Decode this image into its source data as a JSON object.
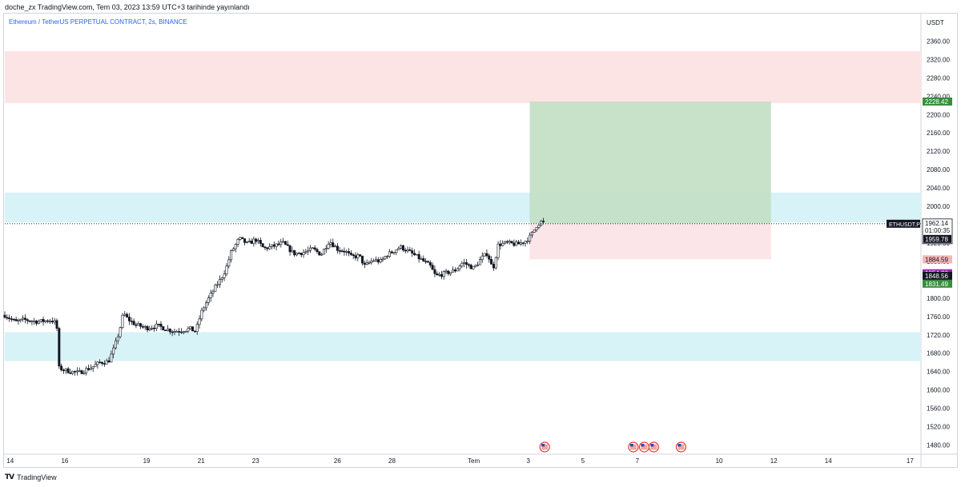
{
  "header": {
    "published_line": "doche_zx TradingView.com, Tem 03, 2023 13:59 UTC+3 tarihinde yayınlandı"
  },
  "footer": {
    "brand": "TradingView",
    "logo_icon": "tradingview-logo-icon"
  },
  "chart_data": {
    "type": "candlestick",
    "title": "Ethereum / TetherUS PERPETUAL CONTRACT, 2s, BINANCE",
    "currency": "USDT",
    "ylim": [
      1460,
      2420
    ],
    "y_ticks": [
      "2360.00",
      "2320.00",
      "2280.00",
      "2240.00",
      "2200.00",
      "2160.00",
      "2120.00",
      "2080.00",
      "2040.00",
      "2000.00",
      "1960.00",
      "1920.00",
      "1880.00",
      "1840.00",
      "1800.00",
      "1760.00",
      "1720.00",
      "1680.00",
      "1640.00",
      "1600.00",
      "1560.00",
      "1520.00",
      "1480.00"
    ],
    "x_ticks": [
      {
        "label": "14",
        "day": 14
      },
      {
        "label": "16",
        "day": 16
      },
      {
        "label": "19",
        "day": 19
      },
      {
        "label": "21",
        "day": 21
      },
      {
        "label": "23",
        "day": 23
      },
      {
        "label": "26",
        "day": 26
      },
      {
        "label": "28",
        "day": 28
      },
      {
        "label": "Tem",
        "day": 31
      },
      {
        "label": "3",
        "day": 33
      },
      {
        "label": "5",
        "day": 35
      },
      {
        "label": "7",
        "day": 37
      },
      {
        "label": "10",
        "day": 40
      },
      {
        "label": "12",
        "day": 42
      },
      {
        "label": "14",
        "day": 44
      },
      {
        "label": "17",
        "day": 47
      }
    ],
    "x_range_days": [
      13.8,
      47.4
    ],
    "zones": [
      {
        "name": "supply-zone",
        "y_from": 2225,
        "y_to": 2338,
        "color": "#fde4e4"
      },
      {
        "name": "upper-demand-zone",
        "y_from": 1965,
        "y_to": 2030,
        "color": "#d8f3f7"
      },
      {
        "name": "lower-demand-zone",
        "y_from": 1663,
        "y_to": 1726,
        "color": "#d8f3f7"
      }
    ],
    "long_position": {
      "x_from_day": 33.05,
      "x_to_day": 41.9,
      "entry": 1962.14,
      "target": 2228.42,
      "stop": 1884.59,
      "target_color": "#c3dfc5",
      "stop_color": "#fbe3e6"
    },
    "current_price": {
      "symbol": "ETHUSDT.P",
      "price": "1962.14",
      "countdown": "01:00:35",
      "value": 1962.14,
      "second_price": "1959.78"
    },
    "price_labels": [
      {
        "text": "2228.42",
        "value": 2228.42,
        "bg": "#388e3c",
        "fg": "#ffffff"
      },
      {
        "text": "1884.59",
        "value": 1884.59,
        "bg": "#f4b6b6",
        "fg": "#131722"
      },
      {
        "text": "1854.30",
        "value": 1854.3,
        "bg": "#9c27b0",
        "fg": "#ffffff"
      },
      {
        "text": "1848.56",
        "value": 1848.56,
        "bg": "#131722",
        "fg": "#ffffff"
      },
      {
        "text": "1831.49",
        "value": 1831.49,
        "bg": "#388e3c",
        "fg": "#ffffff"
      }
    ],
    "event_markers": [
      {
        "day": 33.6,
        "icon": "us-flag-event-icon"
      },
      {
        "day": 36.85,
        "icon": "us-flag-event-icon"
      },
      {
        "day": 37.25,
        "icon": "us-flag-event-icon"
      },
      {
        "day": 37.6,
        "icon": "us-flag-event-icon"
      },
      {
        "day": 38.6,
        "icon": "us-flag-event-icon"
      }
    ],
    "price_path": [
      [
        13.8,
        1763
      ],
      [
        14.2,
        1748
      ],
      [
        14.5,
        1753
      ],
      [
        15.0,
        1749
      ],
      [
        15.5,
        1752
      ],
      [
        15.7,
        1745
      ],
      [
        15.78,
        1648
      ],
      [
        16.0,
        1643
      ],
      [
        16.5,
        1637
      ],
      [
        17.0,
        1650
      ],
      [
        17.3,
        1660
      ],
      [
        17.6,
        1662
      ],
      [
        17.8,
        1690
      ],
      [
        18.0,
        1728
      ],
      [
        18.15,
        1768
      ],
      [
        18.3,
        1755
      ],
      [
        18.6,
        1742
      ],
      [
        19.0,
        1735
      ],
      [
        19.4,
        1740
      ],
      [
        19.7,
        1733
      ],
      [
        20.0,
        1728
      ],
      [
        20.3,
        1730
      ],
      [
        20.6,
        1733
      ],
      [
        20.8,
        1727
      ],
      [
        21.0,
        1768
      ],
      [
        21.2,
        1792
      ],
      [
        21.5,
        1822
      ],
      [
        21.7,
        1840
      ],
      [
        21.9,
        1862
      ],
      [
        22.1,
        1900
      ],
      [
        22.4,
        1930
      ],
      [
        22.7,
        1918
      ],
      [
        23.0,
        1928
      ],
      [
        23.3,
        1908
      ],
      [
        23.7,
        1914
      ],
      [
        24.0,
        1920
      ],
      [
        24.4,
        1897
      ],
      [
        24.8,
        1900
      ],
      [
        25.1,
        1907
      ],
      [
        25.4,
        1895
      ],
      [
        25.7,
        1925
      ],
      [
        26.0,
        1907
      ],
      [
        26.3,
        1902
      ],
      [
        26.5,
        1890
      ],
      [
        26.8,
        1892
      ],
      [
        27.0,
        1870
      ],
      [
        27.3,
        1883
      ],
      [
        27.6,
        1880
      ],
      [
        27.8,
        1894
      ],
      [
        28.0,
        1900
      ],
      [
        28.3,
        1912
      ],
      [
        28.6,
        1902
      ],
      [
        29.0,
        1887
      ],
      [
        29.4,
        1870
      ],
      [
        29.6,
        1848
      ],
      [
        30.0,
        1855
      ],
      [
        30.3,
        1860
      ],
      [
        30.6,
        1878
      ],
      [
        31.0,
        1865
      ],
      [
        31.3,
        1888
      ],
      [
        31.5,
        1898
      ],
      [
        31.7,
        1862
      ],
      [
        31.9,
        1917
      ],
      [
        32.2,
        1920
      ],
      [
        32.6,
        1917
      ],
      [
        32.9,
        1925
      ],
      [
        33.1,
        1936
      ],
      [
        33.3,
        1958
      ],
      [
        33.5,
        1968
      ],
      [
        33.6,
        1962
      ]
    ]
  }
}
